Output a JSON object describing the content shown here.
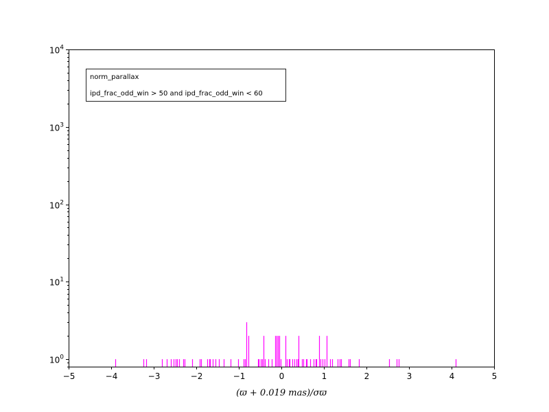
{
  "chart_data": {
    "type": "bar",
    "scale_y": "log",
    "xlabel": "(ϖ + 0.019 mas)/σϖ",
    "xlim": [
      -5,
      5
    ],
    "ylim": [
      0.8,
      10000
    ],
    "x_ticks": [
      -5,
      -4,
      -3,
      -2,
      -1,
      0,
      1,
      2,
      3,
      4,
      5
    ],
    "x_tick_labels": [
      "−5",
      "−4",
      "−3",
      "−2",
      "−1",
      "0",
      "1",
      "2",
      "3",
      "4",
      "5"
    ],
    "y_ticks": [
      {
        "base": "10",
        "exp": "0",
        "value": 1
      },
      {
        "base": "10",
        "exp": "1",
        "value": 10
      },
      {
        "base": "10",
        "exp": "2",
        "value": 100
      },
      {
        "base": "10",
        "exp": "3",
        "value": 1000
      },
      {
        "base": "10",
        "exp": "4",
        "value": 10000
      }
    ],
    "grid": false,
    "legend": {
      "placement": "top-left",
      "title": "norm_parallax",
      "subtitle": "ipd_frac_odd_win > 50 and ipd_frac_odd_win < 60"
    },
    "color": "#ff00ff",
    "bars": [
      {
        "x": -3.9,
        "count": 1
      },
      {
        "x": -3.24,
        "count": 1
      },
      {
        "x": -3.17,
        "count": 1
      },
      {
        "x": -2.8,
        "count": 1
      },
      {
        "x": -2.7,
        "count": 1
      },
      {
        "x": -2.6,
        "count": 1
      },
      {
        "x": -2.53,
        "count": 1
      },
      {
        "x": -2.48,
        "count": 1
      },
      {
        "x": -2.45,
        "count": 1
      },
      {
        "x": -2.4,
        "count": 1
      },
      {
        "x": -2.3,
        "count": 1
      },
      {
        "x": -2.27,
        "count": 1
      },
      {
        "x": -2.1,
        "count": 1
      },
      {
        "x": -1.92,
        "count": 1
      },
      {
        "x": -1.88,
        "count": 1
      },
      {
        "x": -1.75,
        "count": 1
      },
      {
        "x": -1.7,
        "count": 1
      },
      {
        "x": -1.67,
        "count": 1
      },
      {
        "x": -1.62,
        "count": 1
      },
      {
        "x": -1.55,
        "count": 1
      },
      {
        "x": -1.47,
        "count": 1
      },
      {
        "x": -1.35,
        "count": 1
      },
      {
        "x": -1.2,
        "count": 1
      },
      {
        "x": -1.02,
        "count": 1
      },
      {
        "x": -0.88,
        "count": 1
      },
      {
        "x": -0.85,
        "count": 1
      },
      {
        "x": -0.82,
        "count": 3
      },
      {
        "x": -0.77,
        "count": 2
      },
      {
        "x": -0.55,
        "count": 1
      },
      {
        "x": -0.53,
        "count": 1
      },
      {
        "x": -0.48,
        "count": 1
      },
      {
        "x": -0.45,
        "count": 1
      },
      {
        "x": -0.42,
        "count": 2
      },
      {
        "x": -0.38,
        "count": 1
      },
      {
        "x": -0.3,
        "count": 1
      },
      {
        "x": -0.22,
        "count": 1
      },
      {
        "x": -0.15,
        "count": 2
      },
      {
        "x": -0.12,
        "count": 2
      },
      {
        "x": -0.08,
        "count": 2
      },
      {
        "x": -0.05,
        "count": 2
      },
      {
        "x": -0.02,
        "count": 1
      },
      {
        "x": 0.1,
        "count": 2
      },
      {
        "x": 0.13,
        "count": 1
      },
      {
        "x": 0.17,
        "count": 1
      },
      {
        "x": 0.2,
        "count": 1
      },
      {
        "x": 0.25,
        "count": 1
      },
      {
        "x": 0.3,
        "count": 1
      },
      {
        "x": 0.35,
        "count": 1
      },
      {
        "x": 0.38,
        "count": 1
      },
      {
        "x": 0.41,
        "count": 2
      },
      {
        "x": 0.48,
        "count": 1
      },
      {
        "x": 0.52,
        "count": 1
      },
      {
        "x": 0.58,
        "count": 1
      },
      {
        "x": 0.6,
        "count": 1
      },
      {
        "x": 0.68,
        "count": 1
      },
      {
        "x": 0.75,
        "count": 1
      },
      {
        "x": 0.8,
        "count": 1
      },
      {
        "x": 0.83,
        "count": 1
      },
      {
        "x": 0.88,
        "count": 2
      },
      {
        "x": 0.92,
        "count": 1
      },
      {
        "x": 0.96,
        "count": 1
      },
      {
        "x": 1.02,
        "count": 1
      },
      {
        "x": 1.07,
        "count": 2
      },
      {
        "x": 1.15,
        "count": 1
      },
      {
        "x": 1.2,
        "count": 1
      },
      {
        "x": 1.33,
        "count": 1
      },
      {
        "x": 1.37,
        "count": 1
      },
      {
        "x": 1.4,
        "count": 1
      },
      {
        "x": 1.58,
        "count": 1
      },
      {
        "x": 1.62,
        "count": 1
      },
      {
        "x": 1.83,
        "count": 1
      },
      {
        "x": 2.53,
        "count": 1
      },
      {
        "x": 2.71,
        "count": 1
      },
      {
        "x": 2.75,
        "count": 1
      },
      {
        "x": 4.1,
        "count": 1
      }
    ]
  }
}
